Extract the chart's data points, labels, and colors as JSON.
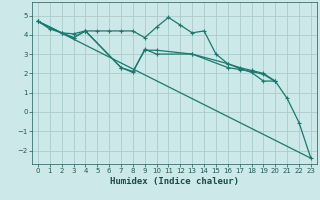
{
  "xlabel": "Humidex (Indice chaleur)",
  "bg_color": "#cce8e8",
  "grid_color": "#aacccc",
  "line_color": "#1a7a6e",
  "xlim": [
    -0.5,
    23.5
  ],
  "ylim": [
    -2.7,
    5.7
  ],
  "xticks": [
    0,
    1,
    2,
    3,
    4,
    5,
    6,
    7,
    8,
    9,
    10,
    11,
    12,
    13,
    14,
    15,
    16,
    17,
    18,
    19,
    20,
    21,
    22,
    23
  ],
  "yticks": [
    -2,
    -1,
    0,
    1,
    2,
    3,
    4,
    5
  ],
  "series1_x": [
    0,
    1,
    2,
    3,
    4,
    5,
    6,
    7,
    8,
    9,
    10,
    11,
    12,
    13,
    14,
    15,
    16,
    17,
    18,
    19,
    20,
    21,
    22,
    23
  ],
  "series1_y": [
    4.7,
    4.3,
    4.1,
    4.05,
    4.2,
    4.2,
    4.2,
    4.2,
    4.2,
    3.85,
    4.4,
    4.9,
    4.5,
    4.1,
    4.2,
    3.0,
    2.5,
    2.25,
    2.05,
    1.6,
    1.6,
    0.7,
    -0.55,
    -2.4
  ],
  "series2_x": [
    0,
    2,
    3,
    4,
    7,
    8,
    9,
    10,
    13,
    16,
    17,
    18,
    19,
    20
  ],
  "series2_y": [
    4.7,
    4.1,
    3.85,
    4.2,
    2.3,
    2.1,
    3.2,
    3.2,
    3.0,
    2.5,
    2.3,
    2.15,
    2.0,
    1.6
  ],
  "series3_x": [
    0,
    2,
    3,
    4,
    7,
    8,
    9,
    10,
    13,
    16,
    17,
    18,
    19,
    20
  ],
  "series3_y": [
    4.7,
    4.1,
    3.85,
    4.2,
    2.3,
    2.05,
    3.25,
    3.0,
    3.0,
    2.3,
    2.2,
    2.1,
    1.95,
    1.58
  ],
  "series4_x": [
    0,
    23
  ],
  "series4_y": [
    4.7,
    -2.4
  ]
}
